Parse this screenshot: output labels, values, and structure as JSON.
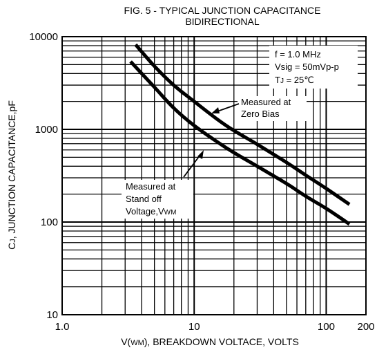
{
  "chart_data": {
    "type": "line",
    "title": "FIG. 5 - TYPICAL JUNCTION CAPACITANCE",
    "subtitle": "BIDIRECTIONAL",
    "xlabel": "V(WM), BREAKDOWN VOLTACE, VOLTS",
    "ylabel": "CJ, JUNCTION CAPACITANCE,pF",
    "x_scale": "log",
    "y_scale": "log",
    "xlim": [
      1,
      200
    ],
    "ylim": [
      10,
      10000
    ],
    "x_ticks": [
      {
        "value": 1,
        "label": "1.0"
      },
      {
        "value": 10,
        "label": "10"
      },
      {
        "value": 100,
        "label": "100"
      },
      {
        "value": 200,
        "label": "200"
      }
    ],
    "y_ticks": [
      {
        "value": 10,
        "label": "10"
      },
      {
        "value": 100,
        "label": "100"
      },
      {
        "value": 1000,
        "label": "1000"
      },
      {
        "value": 10000,
        "label": "10000"
      }
    ],
    "grid": true,
    "conditions": [
      "f = 1.0 MHz",
      "Vsig = 50mVp-p",
      "TJ = 25℃"
    ],
    "series": [
      {
        "name": "Measured at Zero Bias",
        "label_lines": [
          "Measured at",
          "Zero Bias"
        ],
        "x": [
          3.6,
          5,
          7,
          10,
          15,
          20,
          30,
          50,
          70,
          100,
          150
        ],
        "y": [
          8200,
          4800,
          3000,
          2000,
          1280,
          970,
          690,
          440,
          320,
          230,
          155
        ]
      },
      {
        "name": "Measured at Stand off Voltage,VWM",
        "label_lines": [
          "Measured at",
          "Stand off",
          "Voltage,VWM"
        ],
        "x": [
          3.3,
          5,
          7,
          10,
          15,
          20,
          30,
          50,
          70,
          100,
          150
        ],
        "y": [
          5400,
          2850,
          1700,
          1100,
          730,
          560,
          400,
          260,
          190,
          140,
          95
        ]
      }
    ]
  }
}
